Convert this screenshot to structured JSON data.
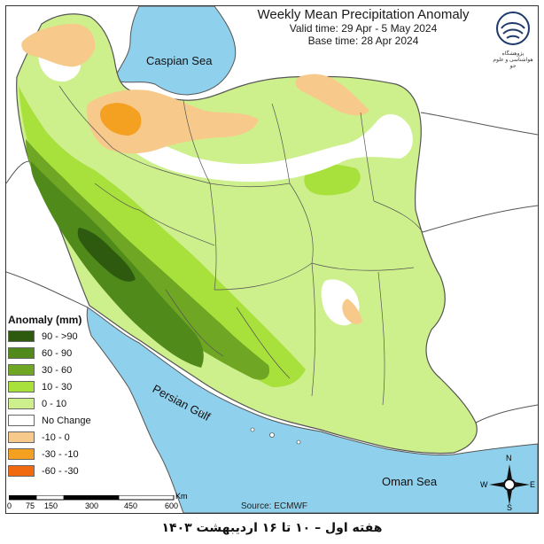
{
  "map": {
    "title": "Weekly Mean Precipitation Anomaly",
    "valid_time": "Valid time: 29 Apr - 5 May 2024",
    "base_time": "Base time: 28 Apr 2024",
    "logo_text": "پژوهشگاه هواشناسی و علوم جو",
    "source": "Source: ECMWF",
    "caption": "هفته اول – ۱۰ تا ۱۶ اردیبهشت ۱۴۰۳",
    "seas": {
      "caspian": "Caspian Sea",
      "gulf": "Persian Gulf",
      "oman": "Oman Sea"
    },
    "legend": {
      "title": "Anomaly (mm)",
      "items": [
        {
          "label": "90 - >90",
          "color": "#2e5a0f"
        },
        {
          "label": "60 - 90",
          "color": "#4f8a1b"
        },
        {
          "label": "30 - 60",
          "color": "#6fa623"
        },
        {
          "label": "10 - 30",
          "color": "#a8e03c"
        },
        {
          "label": "0 - 10",
          "color": "#cdf08c"
        },
        {
          "label": "No Change",
          "color": "#ffffff"
        },
        {
          "label": "-10 - 0",
          "color": "#f7c98a"
        },
        {
          "label": "-30 - -10",
          "color": "#f4a020"
        },
        {
          "label": "-60 - -30",
          "color": "#f26a10"
        }
      ]
    },
    "scale": {
      "ticks": [
        "0",
        "75",
        "150",
        "300",
        "450",
        "600"
      ],
      "unit": "Km"
    },
    "compass": {
      "n": "N",
      "s": "S",
      "e": "E",
      "w": "W"
    },
    "colors": {
      "sea": "#8fd0ec",
      "outside": "#ffffff",
      "border": "#555555"
    }
  }
}
